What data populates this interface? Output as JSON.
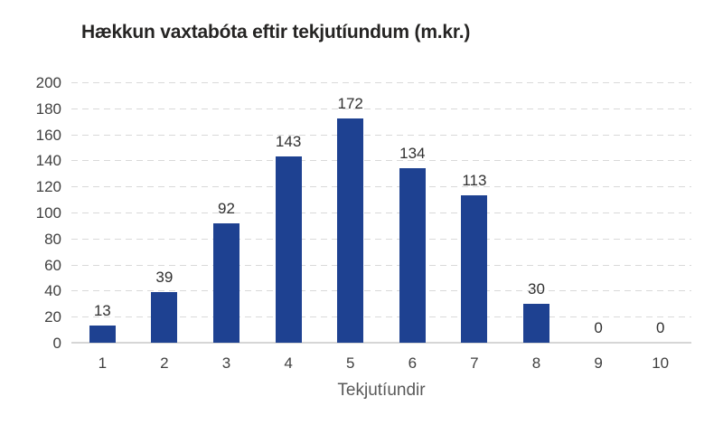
{
  "chart_data": {
    "type": "bar",
    "title": "Hækkun vaxtabóta eftir tekjutíundum (m.kr.)",
    "categories": [
      "1",
      "2",
      "3",
      "4",
      "5",
      "6",
      "7",
      "8",
      "9",
      "10"
    ],
    "values": [
      13,
      39,
      92,
      143,
      172,
      134,
      113,
      30,
      0,
      0
    ],
    "data_labels": [
      "13",
      "39",
      "92",
      "143",
      "172",
      "134",
      "113",
      "30",
      "0",
      "0"
    ],
    "xlabel": "Tekjutíundir",
    "ylabel": "",
    "ylim": [
      0,
      200
    ],
    "yticks": [
      0,
      20,
      40,
      60,
      80,
      100,
      120,
      140,
      160,
      180,
      200
    ],
    "grid": "horizontal-dashed",
    "legend": "none",
    "colors": {
      "bar": "#1e4191",
      "title_text": "#252423",
      "tick_text": "#404040",
      "data_label_text": "#303030",
      "axis_title_text": "#595959",
      "gridline": "#d9d9d9",
      "axis_line": "#d6d6d6",
      "background": "#ffffff"
    }
  }
}
